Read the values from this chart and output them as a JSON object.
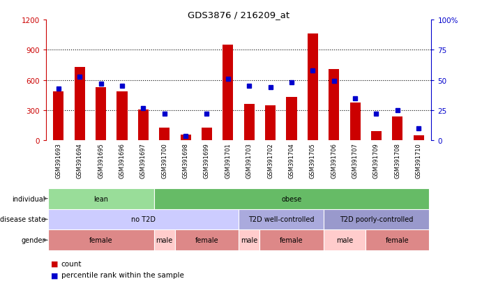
{
  "title": "GDS3876 / 216209_at",
  "samples": [
    "GSM391693",
    "GSM391694",
    "GSM391695",
    "GSM391696",
    "GSM391697",
    "GSM391700",
    "GSM391698",
    "GSM391699",
    "GSM391701",
    "GSM391703",
    "GSM391702",
    "GSM391704",
    "GSM391705",
    "GSM391706",
    "GSM391707",
    "GSM391709",
    "GSM391708",
    "GSM391710"
  ],
  "counts": [
    490,
    730,
    530,
    490,
    310,
    130,
    55,
    130,
    950,
    360,
    350,
    430,
    1060,
    710,
    380,
    95,
    240,
    50
  ],
  "percentiles": [
    43,
    53,
    47,
    45,
    27,
    22,
    4,
    22,
    51,
    45,
    44,
    48,
    58,
    49,
    35,
    22,
    25,
    10
  ],
  "ylim_left": [
    0,
    1200
  ],
  "ylim_right": [
    0,
    100
  ],
  "yticks_left": [
    0,
    300,
    600,
    900,
    1200
  ],
  "yticks_right": [
    0,
    25,
    50,
    75,
    100
  ],
  "bar_color": "#cc0000",
  "dot_color": "#0000cc",
  "background_color": "#ffffff",
  "individual_groups": [
    {
      "label": "lean",
      "start": 0,
      "end": 5,
      "color": "#99dd99"
    },
    {
      "label": "obese",
      "start": 5,
      "end": 18,
      "color": "#66bb66"
    }
  ],
  "disease_groups": [
    {
      "label": "no T2D",
      "start": 0,
      "end": 9,
      "color": "#ccccff"
    },
    {
      "label": "T2D well-controlled",
      "start": 9,
      "end": 13,
      "color": "#aaaadd"
    },
    {
      "label": "T2D poorly-controlled",
      "start": 13,
      "end": 18,
      "color": "#9999cc"
    }
  ],
  "gender_groups": [
    {
      "label": "female",
      "start": 0,
      "end": 5,
      "color": "#dd8888"
    },
    {
      "label": "male",
      "start": 5,
      "end": 6,
      "color": "#ffcccc"
    },
    {
      "label": "female",
      "start": 6,
      "end": 9,
      "color": "#dd8888"
    },
    {
      "label": "male",
      "start": 9,
      "end": 10,
      "color": "#ffcccc"
    },
    {
      "label": "female",
      "start": 10,
      "end": 13,
      "color": "#dd8888"
    },
    {
      "label": "male",
      "start": 13,
      "end": 15,
      "color": "#ffcccc"
    },
    {
      "label": "female",
      "start": 15,
      "end": 18,
      "color": "#dd8888"
    }
  ]
}
